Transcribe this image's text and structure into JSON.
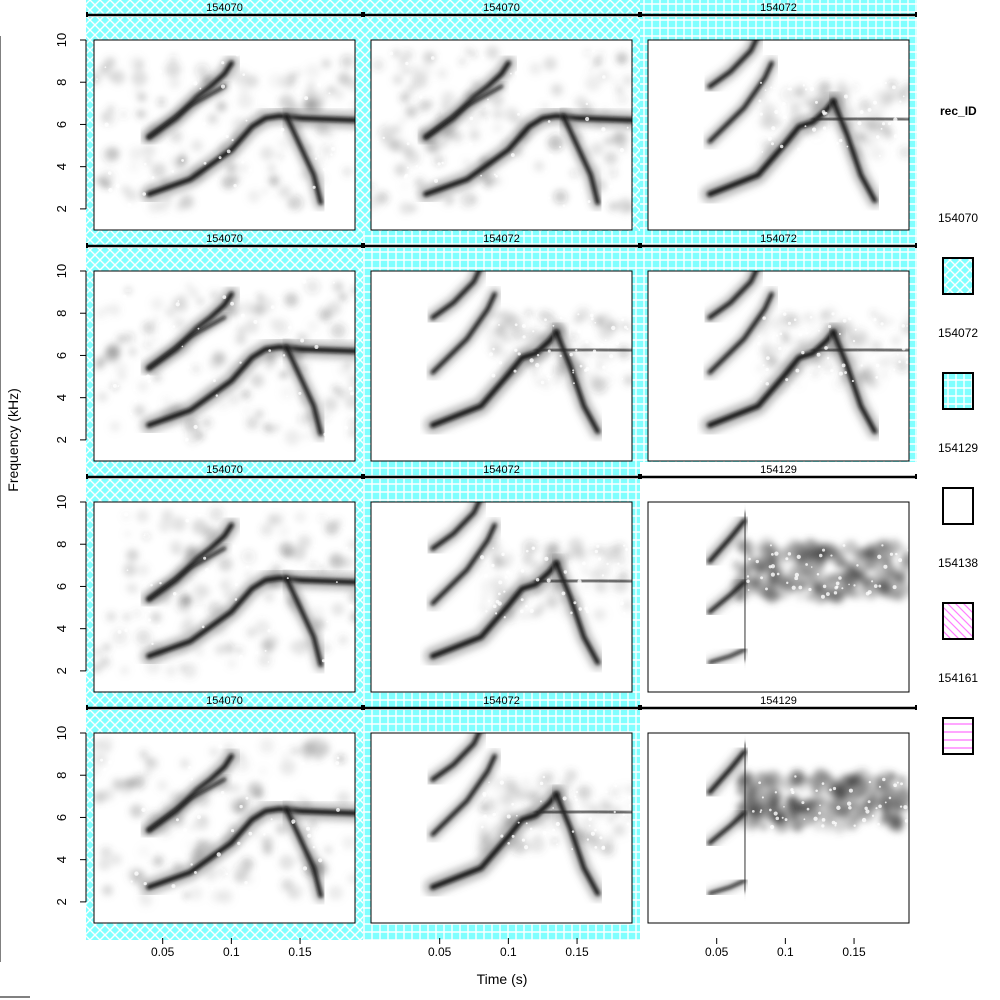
{
  "chart_data": {
    "type": "heatmap",
    "subtype": "spectrogram-grid",
    "xlabel": "Time (s)",
    "ylabel": "Frequency (kHz)",
    "x_ticks": [
      0.05,
      0.1,
      0.15
    ],
    "x_tick_labels": [
      "0.05",
      "0.1",
      "0.15"
    ],
    "xlim": [
      0.0,
      0.19
    ],
    "y_ticks": [
      2,
      4,
      6,
      8,
      10
    ],
    "y_tick_labels": [
      "2",
      "4",
      "6",
      "8",
      "10"
    ],
    "ylim": [
      1,
      10
    ],
    "grid": false,
    "colormap": "grayscale (white = low amplitude, black = high)",
    "legend": {
      "title": "rec_ID",
      "position": "right",
      "entries": [
        {
          "label": "154070",
          "color": "#80ffff",
          "pattern": "crosshatch"
        },
        {
          "label": "154072",
          "color": "#80ffff",
          "pattern": "grid"
        },
        {
          "label": "154129",
          "color": "#ffffff",
          "pattern": "none"
        },
        {
          "label": "154138",
          "color": "#ff80ff",
          "pattern": "diagonal"
        },
        {
          "label": "154161",
          "color": "#ff80ff",
          "pattern": "horizontal"
        }
      ]
    },
    "panels": [
      {
        "row": 1,
        "col": 1,
        "label": "154070",
        "call": "A"
      },
      {
        "row": 1,
        "col": 2,
        "label": "154070",
        "call": "A"
      },
      {
        "row": 1,
        "col": 3,
        "label": "154072",
        "call": "B"
      },
      {
        "row": 2,
        "col": 1,
        "label": "154070",
        "call": "A"
      },
      {
        "row": 2,
        "col": 2,
        "label": "154072",
        "call": "B"
      },
      {
        "row": 2,
        "col": 3,
        "label": "154072",
        "call": "B"
      },
      {
        "row": 3,
        "col": 1,
        "label": "154070",
        "call": "A"
      },
      {
        "row": 3,
        "col": 2,
        "label": "154072",
        "call": "B"
      },
      {
        "row": 3,
        "col": 3,
        "label": "154129",
        "call": "C"
      },
      {
        "row": 4,
        "col": 1,
        "label": "154070",
        "call": "A"
      },
      {
        "row": 4,
        "col": 2,
        "label": "154072",
        "call": "B"
      },
      {
        "row": 4,
        "col": 3,
        "label": "154129",
        "call": "C"
      }
    ],
    "call_shapes": {
      "A": {
        "traces": [
          {
            "points": [
              [
                0.04,
                5.4
              ],
              [
                0.06,
                6.3
              ],
              [
                0.075,
                7.3
              ],
              [
                0.085,
                7.8
              ],
              [
                0.095,
                8.4
              ],
              [
                0.1,
                8.9
              ]
            ],
            "width": 1.6
          },
          {
            "points": [
              [
                0.04,
                2.7
              ],
              [
                0.07,
                3.4
              ],
              [
                0.1,
                4.8
              ],
              [
                0.115,
                5.9
              ],
              [
                0.125,
                6.3
              ],
              [
                0.135,
                6.4
              ],
              [
                0.15,
                6.3
              ],
              [
                0.19,
                6.2
              ]
            ],
            "width": 1.7
          },
          {
            "points": [
              [
                0.14,
                6.4
              ],
              [
                0.15,
                5.0
              ],
              [
                0.16,
                3.6
              ],
              [
                0.165,
                2.3
              ]
            ],
            "width": 1.4
          },
          {
            "points": [
              [
                0.04,
                5.4
              ],
              [
                0.07,
                6.9
              ],
              [
                0.095,
                7.8
              ]
            ],
            "width": 0.9
          }
        ],
        "noise": {
          "t": [
            0.0,
            0.19
          ],
          "f": [
            2.0,
            9.5
          ],
          "level": 0.28
        }
      },
      "B": {
        "traces": [
          {
            "points": [
              [
                0.045,
                7.8
              ],
              [
                0.06,
                8.5
              ],
              [
                0.075,
                9.5
              ],
              [
                0.08,
                10.2
              ]
            ],
            "width": 1.4
          },
          {
            "points": [
              [
                0.045,
                5.2
              ],
              [
                0.07,
                6.8
              ],
              [
                0.085,
                8.2
              ],
              [
                0.09,
                8.9
              ]
            ],
            "width": 1.3
          },
          {
            "points": [
              [
                0.045,
                2.7
              ],
              [
                0.08,
                3.6
              ],
              [
                0.1,
                5.1
              ],
              [
                0.11,
                5.9
              ],
              [
                0.12,
                6.1
              ],
              [
                0.13,
                6.7
              ],
              [
                0.135,
                7.1
              ]
            ],
            "width": 1.8
          },
          {
            "points": [
              [
                0.135,
                7.1
              ],
              [
                0.145,
                5.5
              ],
              [
                0.155,
                3.6
              ],
              [
                0.165,
                2.4
              ]
            ],
            "width": 1.5
          },
          {
            "points": [
              [
                0.12,
                6.2
              ],
              [
                0.16,
                6.3
              ],
              [
                0.19,
                6.2
              ]
            ],
            "width": 0.8
          }
        ],
        "noise": {
          "t": [
            0.08,
            0.19
          ],
          "f": [
            4.5,
            8.0
          ],
          "level": 0.2
        }
      },
      "C": {
        "traces": [
          {
            "points": [
              [
                0.045,
                7.2
              ],
              [
                0.06,
                8.3
              ],
              [
                0.07,
                9.1
              ]
            ],
            "width": 1.4
          },
          {
            "points": [
              [
                0.045,
                4.8
              ],
              [
                0.06,
                5.6
              ],
              [
                0.07,
                6.2
              ]
            ],
            "width": 1.2
          },
          {
            "points": [
              [
                0.045,
                2.4
              ],
              [
                0.06,
                2.7
              ],
              [
                0.07,
                3.0
              ]
            ],
            "width": 0.9
          },
          {
            "points": [
              [
                0.07,
                2.5
              ],
              [
                0.071,
                9.5
              ]
            ],
            "width": 0.5
          }
        ],
        "noise": {
          "t": [
            0.065,
            0.19
          ],
          "f": [
            5.5,
            8.0
          ],
          "level": 0.55
        }
      }
    }
  }
}
